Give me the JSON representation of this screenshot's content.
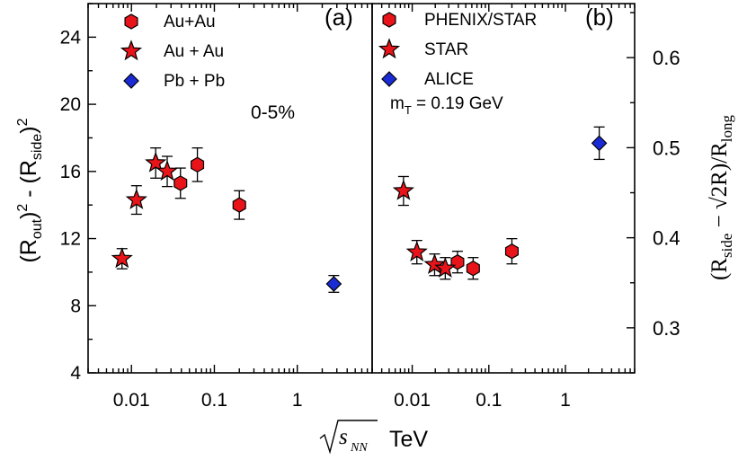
{
  "colors": {
    "red": "#e8141a",
    "blue": "#1a2bd6",
    "edge": "#000000"
  },
  "chart_data": [
    {
      "type": "scatter",
      "panel_label": "(a)",
      "annotation": "0-5%",
      "xscale": "log",
      "xlim": [
        0.003,
        8
      ],
      "ylim": [
        4,
        26
      ],
      "x_ticks": [
        0.01,
        0.1,
        1
      ],
      "x_tick_labels": [
        "0.01",
        "0.1",
        "1"
      ],
      "y_ticks": [
        4,
        8,
        12,
        16,
        20,
        24
      ],
      "y_tick_labels": [
        "4",
        "8",
        "12",
        "16",
        "20",
        "24"
      ],
      "ylabel": "(R_out)^2 - (R_side)^2",
      "series": [
        {
          "name": "Au+Au",
          "marker": "hexagon",
          "color": "red",
          "points": [
            {
              "x": 0.039,
              "y": 15.3,
              "err": 0.9
            },
            {
              "x": 0.0624,
              "y": 16.4,
              "err": 1.0
            },
            {
              "x": 0.2,
              "y": 14.0,
              "err": 0.85
            }
          ]
        },
        {
          "name": "Au + Au",
          "marker": "star",
          "color": "red",
          "points": [
            {
              "x": 0.0077,
              "y": 10.8,
              "err": 0.6
            },
            {
              "x": 0.0115,
              "y": 14.3,
              "err": 0.85
            },
            {
              "x": 0.0196,
              "y": 16.5,
              "err": 0.9
            },
            {
              "x": 0.027,
              "y": 16.0,
              "err": 0.9
            }
          ]
        },
        {
          "name": "Pb + Pb",
          "marker": "diamond",
          "color": "blue",
          "points": [
            {
              "x": 2.76,
              "y": 9.3,
              "err": 0.5
            }
          ]
        }
      ]
    },
    {
      "type": "scatter",
      "panel_label": "(b)",
      "annotation": "m_T = 0.19 GeV",
      "xscale": "log",
      "xlim": [
        0.003,
        8
      ],
      "ylim": [
        0.25,
        0.66
      ],
      "y_ticks": [
        0.3,
        0.4,
        0.5,
        0.6
      ],
      "y_tick_labels": [
        "0.3",
        "0.4",
        "0.5",
        "0.6"
      ],
      "ylabel": "(R_side - √2R)/R_long",
      "series": [
        {
          "name": "PHENIX/STAR",
          "marker": "hexagon",
          "color": "red",
          "points": [
            {
              "x": 0.039,
              "y": 0.373,
              "err": 0.012
            },
            {
              "x": 0.0624,
              "y": 0.366,
              "err": 0.012
            },
            {
              "x": 0.2,
              "y": 0.385,
              "err": 0.014
            }
          ]
        },
        {
          "name": "STAR",
          "marker": "star",
          "color": "red",
          "points": [
            {
              "x": 0.0077,
              "y": 0.452,
              "err": 0.016
            },
            {
              "x": 0.0115,
              "y": 0.384,
              "err": 0.013
            },
            {
              "x": 0.0196,
              "y": 0.37,
              "err": 0.012
            },
            {
              "x": 0.027,
              "y": 0.366,
              "err": 0.012
            }
          ]
        },
        {
          "name": "ALICE",
          "marker": "diamond",
          "color": "blue",
          "points": [
            {
              "x": 2.76,
              "y": 0.505,
              "err": 0.018
            }
          ]
        }
      ]
    }
  ],
  "legend_a": [
    "Au+Au",
    "Au + Au",
    "Pb + Pb"
  ],
  "legend_b": [
    "PHENIX/STAR",
    "STAR",
    "ALICE"
  ],
  "ylabel_a": {
    "open1": "(R",
    "sub1": "out",
    "close1": ")",
    "sup1": "2",
    "mid": " - (R",
    "sub2": "side",
    "close2": ")",
    "sup2": "2"
  },
  "ylabel_b": {
    "open": "(R",
    "sub": "side",
    "mid": " − √2R)/R",
    "sub2": "long"
  },
  "xlabel": {
    "sqrt": "√",
    "s": "s",
    "sub": "NN",
    "unit": "TeV"
  },
  "mt_label": {
    "m": "m",
    "sub": "T",
    "rest": " = 0.19 GeV"
  }
}
